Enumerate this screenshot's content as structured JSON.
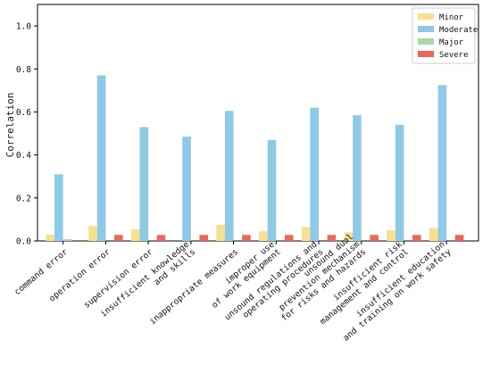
{
  "chart_data": {
    "type": "bar",
    "title": "",
    "xlabel": "",
    "ylabel": "Correlation",
    "ylim": [
      0,
      1.1
    ],
    "yticks": [
      0.0,
      0.2,
      0.4,
      0.6,
      0.8,
      1.0
    ],
    "ytick_labels": [
      "0.0",
      "0.2",
      "0.4",
      "0.6",
      "0.8",
      "1.0"
    ],
    "grid": false,
    "legend_position": "top-right",
    "categories": [
      [
        "command error"
      ],
      [
        "operation error"
      ],
      [
        "supervision error"
      ],
      [
        "insufficient knowledge",
        "and skills"
      ],
      [
        "inappropriate measures"
      ],
      [
        "improper use",
        "of work equipment"
      ],
      [
        "unsound regulations and",
        "operating procedures"
      ],
      [
        "unsound dual",
        "prevention mechanism",
        "for risks and hazards"
      ],
      [
        "insufficient risk",
        "management and control"
      ],
      [
        "insufficient education",
        "and training on work safety"
      ]
    ],
    "series": [
      {
        "name": "Minor",
        "color": "#f7e08f",
        "values": [
          0.03,
          0.07,
          0.055,
          0.0,
          0.075,
          0.045,
          0.065,
          0.04,
          0.05,
          0.06
        ]
      },
      {
        "name": "Moderate",
        "color": "#8ecae6",
        "values": [
          0.31,
          0.77,
          0.53,
          0.485,
          0.605,
          0.47,
          0.62,
          0.585,
          0.54,
          0.725
        ]
      },
      {
        "name": "Major",
        "color": "#a8d9a0",
        "values": [
          0.008,
          0.0,
          0.0,
          0.0,
          0.0,
          0.0,
          0.0,
          0.0,
          0.0,
          0.0
        ]
      },
      {
        "name": "Severe",
        "color": "#e8695a",
        "values": [
          0.0,
          0.028,
          0.028,
          0.028,
          0.028,
          0.028,
          0.028,
          0.028,
          0.028,
          0.028
        ]
      }
    ]
  }
}
